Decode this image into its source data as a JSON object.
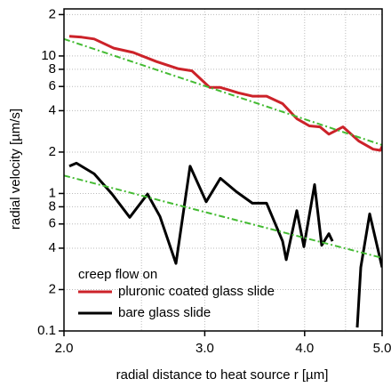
{
  "chart_data": {
    "type": "line",
    "x_label": "radial distance to heat source r [µm]",
    "y_label": "radial velocity [µm/s]",
    "x_log": true,
    "y_log": true,
    "grid": true,
    "xlim": [
      2.0,
      5.0
    ],
    "ylim": [
      0.1,
      22
    ],
    "xticks": [
      {
        "value": 2,
        "label": "2.0"
      },
      {
        "value": 3,
        "label": "3.0"
      },
      {
        "value": 4,
        "label": "4.0"
      },
      {
        "value": 5,
        "label": "5.0"
      }
    ],
    "x_minor_grid": [
      2.5,
      3.5,
      4.5
    ],
    "yticks": [
      0.1,
      {
        "value": 0.2,
        "label": "2"
      },
      {
        "value": 0.4,
        "label": "4"
      },
      {
        "value": 0.6,
        "label": "6"
      },
      {
        "value": 0.8,
        "label": "8"
      },
      1,
      2,
      4,
      6,
      8,
      10,
      {
        "value": 20,
        "label": "2"
      }
    ],
    "legend_title": "creep flow on",
    "legend_position": "lower left",
    "series": [
      {
        "name": "pluronic coated glass slide",
        "color": "#cc2229",
        "style": "solid",
        "x": [
          2.031,
          2.105,
          2.182,
          2.308,
          2.442,
          2.61,
          2.775,
          2.891,
          3.043,
          3.138,
          3.303,
          3.441,
          3.585,
          3.754,
          3.911,
          4.054,
          4.18,
          4.289,
          4.468,
          4.678,
          4.873,
          4.975,
          5.0
        ],
        "values": [
          13.9,
          13.7,
          13.3,
          11.4,
          10.6,
          9.1,
          8.1,
          7.8,
          5.9,
          5.9,
          5.4,
          5.1,
          5.1,
          4.5,
          3.5,
          3.1,
          3.05,
          2.7,
          3.05,
          2.4,
          2.1,
          2.06,
          2.2
        ]
      },
      {
        "name": "bare glass slide",
        "color": "#000000",
        "style": "solid",
        "x": [
          2.031,
          2.073,
          2.182,
          2.297,
          2.417,
          2.544,
          2.637,
          2.761,
          2.876,
          3.012,
          3.138,
          3.286,
          3.441,
          3.585,
          3.754,
          3.793,
          3.911,
          3.992,
          4.116,
          4.201,
          4.289,
          4.333,
          4.5,
          4.654,
          4.702,
          4.824,
          5.0
        ],
        "values": [
          1.58,
          1.66,
          1.39,
          0.99,
          0.67,
          0.99,
          0.68,
          0.31,
          1.58,
          0.87,
          1.29,
          1.03,
          0.85,
          0.85,
          0.45,
          0.33,
          0.75,
          0.41,
          1.16,
          0.42,
          0.51,
          0.45,
          null,
          0.106,
          0.29,
          0.71,
          0.29
        ]
      },
      {
        "color": "#44bb33",
        "style": "dashdot",
        "x": [
          2.0,
          5.0
        ],
        "values": [
          13.3,
          2.25
        ]
      },
      {
        "color": "#44bb33",
        "style": "dashdot",
        "x": [
          2.0,
          5.0
        ],
        "values": [
          1.35,
          0.34
        ]
      }
    ]
  }
}
